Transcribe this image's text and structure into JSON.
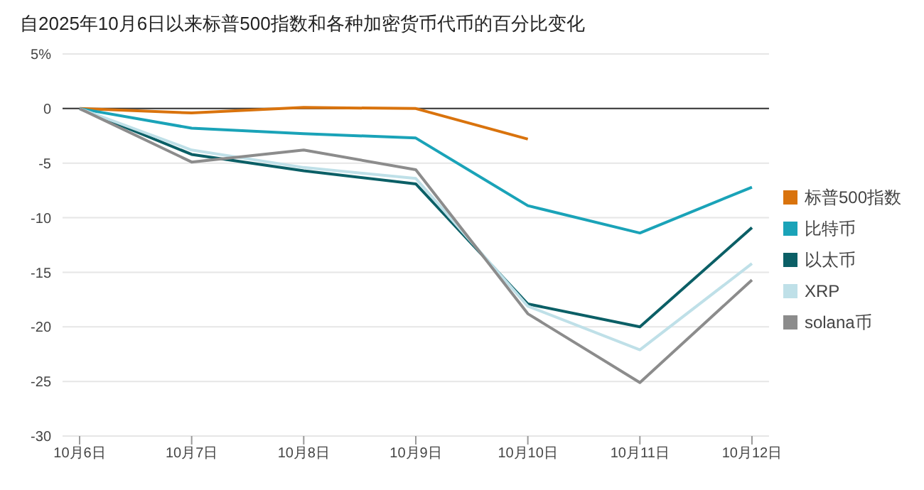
{
  "chart_data": {
    "type": "line",
    "title": "自2025年10月6日以来标普500指数和各种加密货币代币的百分比变化",
    "categories": [
      "10月6日",
      "10月7日",
      "10月8日",
      "10月9日",
      "10月10日",
      "10月11日",
      "10月12日"
    ],
    "series": [
      {
        "name": "标普500指数",
        "color": "#d9730d",
        "values": [
          0,
          -0.4,
          0.1,
          0,
          -2.8,
          null,
          null
        ]
      },
      {
        "name": "比特币",
        "color": "#1aa3b8",
        "values": [
          0,
          -1.8,
          -2.3,
          -2.7,
          -8.9,
          -11.4,
          -7.2
        ]
      },
      {
        "name": "以太币",
        "color": "#0b5f66",
        "values": [
          0,
          -4.2,
          -5.7,
          -6.9,
          -17.9,
          -20,
          -10.9
        ]
      },
      {
        "name": "XRP",
        "color": "#bfe0e8",
        "values": [
          0,
          -3.8,
          -5.4,
          -6.4,
          -18.1,
          -22.1,
          -14.2
        ]
      },
      {
        "name": "solana币",
        "color": "#8c8c8c",
        "values": [
          0,
          -4.9,
          -3.8,
          -5.6,
          -18.8,
          -25.1,
          -15.7
        ]
      }
    ],
    "ylim": [
      -30,
      5
    ],
    "yticks": [
      {
        "value": 5,
        "label": "5%"
      },
      0,
      -5,
      -10,
      -15,
      -20,
      -25,
      -30
    ],
    "ref_lines": [
      {
        "axis": "y",
        "value": 0,
        "color": "#333333"
      }
    ],
    "grid": "y",
    "legend": "right",
    "marker": "none",
    "line_style": "solid"
  }
}
